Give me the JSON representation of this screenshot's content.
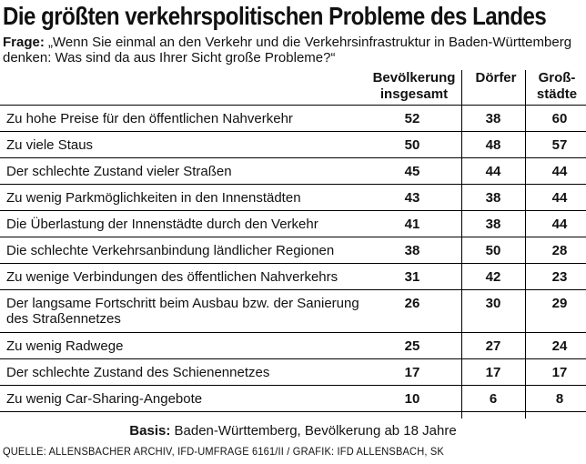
{
  "title": "Die größten verkehrspolitischen Probleme des Landes",
  "question_label": "Frage:",
  "question_text": "„Wenn Sie einmal an den Verkehr und die Verkehrsinfrastruktur in Baden-Württemberg denken: Was sind da aus Ihrer Sicht große Probleme?“",
  "basis_label": "Basis:",
  "basis_text": "Baden-Württemberg, Bevölkerung ab 18 Jahre",
  "source": "QUELLE: ALLENSBACHER ARCHIV, IFD-UMFRAGE 6161/II / GRAFIK: IFD ALLENSBACH, SK",
  "chart_data": {
    "type": "table",
    "columns": [
      {
        "line1": "Bevölkerung",
        "line2": "insgesamt"
      },
      {
        "line1": "Dörfer",
        "line2": ""
      },
      {
        "line1": "Groß-",
        "line2": "städte"
      }
    ],
    "rows": [
      {
        "label": "Zu hohe Preise für den öffentlichen Nahverkehr",
        "values": [
          52,
          38,
          60
        ]
      },
      {
        "label": "Zu viele Staus",
        "values": [
          50,
          48,
          57
        ]
      },
      {
        "label": "Der schlechte Zustand vieler Straßen",
        "values": [
          45,
          44,
          44
        ]
      },
      {
        "label": "Zu wenig Parkmöglichkeiten in den Innenstädten",
        "values": [
          43,
          38,
          44
        ]
      },
      {
        "label": "Die Überlastung der Innenstädte durch den Verkehr",
        "values": [
          41,
          38,
          44
        ]
      },
      {
        "label": "Die schlechte Verkehrsanbindung ländlicher Regionen",
        "values": [
          38,
          50,
          28
        ]
      },
      {
        "label": "Zu wenige Verbindungen des öffentlichen Nahverkehrs",
        "values": [
          31,
          42,
          23
        ]
      },
      {
        "label": "Der langsame Fortschritt beim Ausbau bzw. der Sanierung des Straßennetzes",
        "values": [
          26,
          30,
          29
        ]
      },
      {
        "label": "Zu wenig Radwege",
        "values": [
          25,
          27,
          24
        ]
      },
      {
        "label": "Der schlechte Zustand des Schienennetzes",
        "values": [
          17,
          17,
          17
        ]
      },
      {
        "label": "Zu wenig Car-Sharing-Angebote",
        "values": [
          10,
          6,
          8
        ]
      }
    ]
  }
}
